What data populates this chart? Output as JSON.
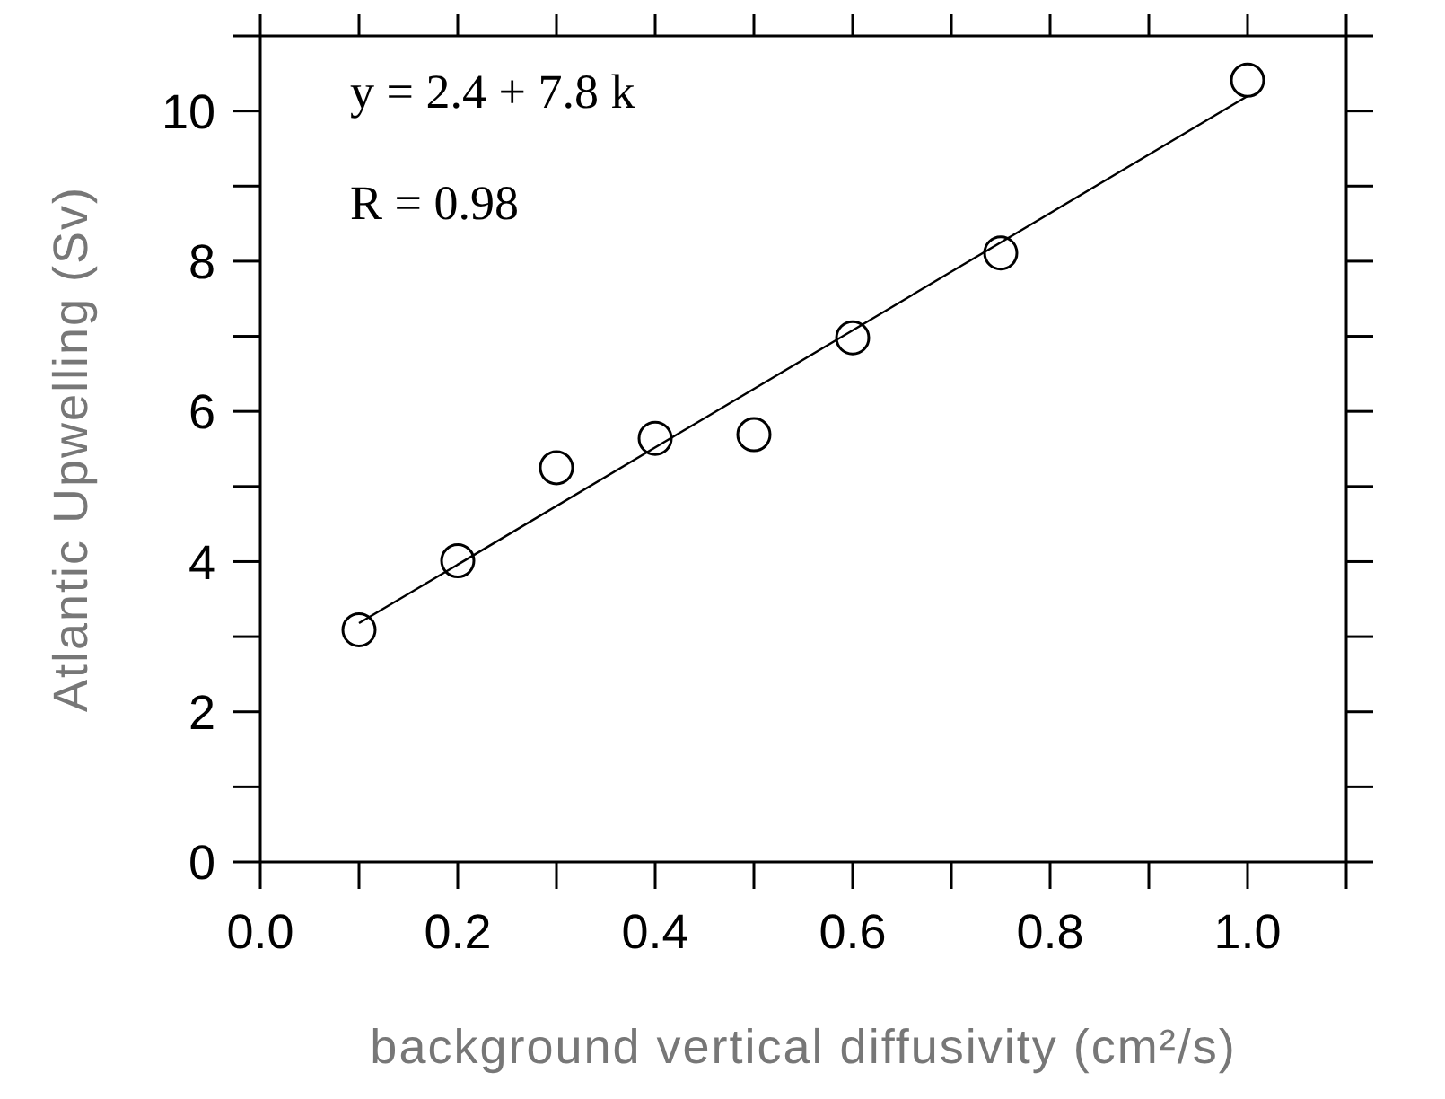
{
  "chart_data": {
    "type": "scatter",
    "xlabel": "background vertical diffusivity (cm²/s)",
    "ylabel": "Atlantic Upwelling (Sv)",
    "annotations": [
      "y = 2.4 + 7.8 k",
      "R = 0.98"
    ],
    "x": [
      0.1,
      0.2,
      0.3,
      0.4,
      0.5,
      0.6,
      0.75,
      1.0
    ],
    "series": [
      {
        "color": "#000000",
        "marker": "circle",
        "values": [
          3.09,
          4.01,
          5.25,
          5.64,
          5.69,
          6.98,
          8.11,
          10.41
        ]
      },
      {
        "type": "line",
        "color": "#000000",
        "marker": "none",
        "x": [
          0.1,
          1.0
        ],
        "values": [
          3.18,
          10.2
        ]
      }
    ],
    "xlim": [
      0,
      1.1
    ],
    "xticks": [
      {
        "value": 0,
        "label": "0.0"
      },
      {
        "value": 0.1,
        "label": null
      },
      {
        "value": 0.2,
        "label": "0.2"
      },
      {
        "value": 0.3,
        "label": null
      },
      {
        "value": 0.4,
        "label": "0.4"
      },
      {
        "value": 0.5,
        "label": null
      },
      {
        "value": 0.6,
        "label": "0.6"
      },
      {
        "value": 0.7,
        "label": null
      },
      {
        "value": 0.8,
        "label": "0.8"
      },
      {
        "value": 0.9,
        "label": null
      },
      {
        "value": 1.0,
        "label": "1.0"
      },
      {
        "value": 1.1,
        "label": null
      }
    ],
    "ylim": [
      0,
      11
    ],
    "yticks": [
      0,
      {
        "value": 1,
        "label": null
      },
      2,
      {
        "value": 3,
        "label": null
      },
      4,
      {
        "value": 5,
        "label": null
      },
      6,
      {
        "value": 7,
        "label": null
      },
      8,
      {
        "value": 9,
        "label": null
      },
      10,
      {
        "value": 11,
        "label": null
      }
    ],
    "legend": false
  }
}
